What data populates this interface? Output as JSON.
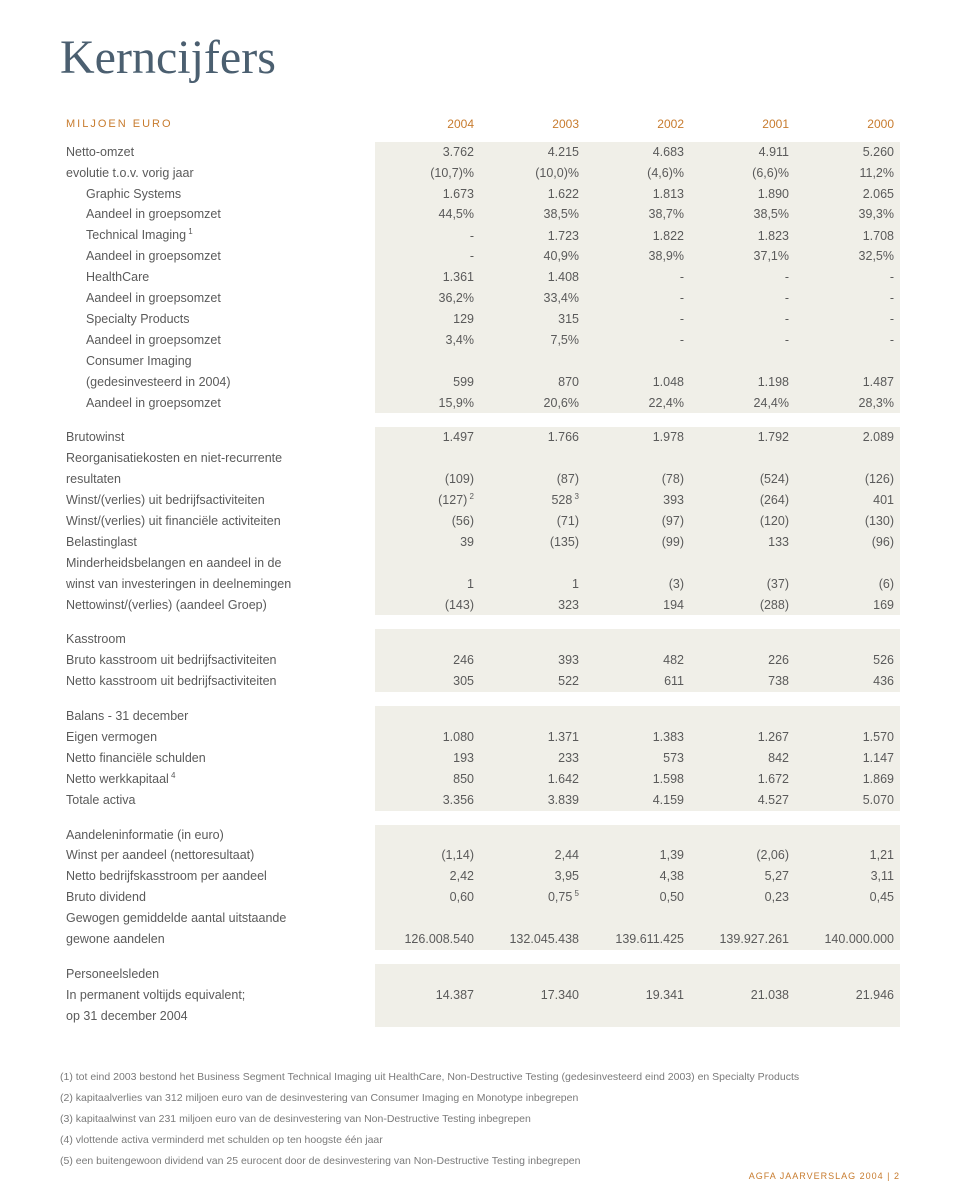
{
  "title": "Kerncijfers",
  "header": {
    "label": "MILJOEN EURO",
    "years": [
      "2004",
      "2003",
      "2002",
      "2001",
      "2000"
    ]
  },
  "colors": {
    "accent": "#c77b2e",
    "cellbg": "#f0efe8",
    "text": "#5a5a5a",
    "title": "#4b5f70"
  },
  "rows": [
    {
      "type": "data",
      "label": "Netto-omzet",
      "v": [
        "3.762",
        "4.215",
        "4.683",
        "4.911",
        "5.260"
      ]
    },
    {
      "type": "data",
      "label": "evolutie t.o.v. vorig jaar",
      "v": [
        "(10,7)%",
        "(10,0)%",
        "(4,6)%",
        "(6,6)%",
        "11,2%"
      ]
    },
    {
      "type": "data",
      "sub": true,
      "label": "Graphic Systems",
      "v": [
        "1.673",
        "1.622",
        "1.813",
        "1.890",
        "2.065"
      ]
    },
    {
      "type": "data",
      "sub": true,
      "label": "Aandeel in groepsomzet",
      "v": [
        "44,5%",
        "38,5%",
        "38,7%",
        "38,5%",
        "39,3%"
      ]
    },
    {
      "type": "data",
      "sub": true,
      "label": "Technical Imaging",
      "sup": "1",
      "v": [
        "-",
        "1.723",
        "1.822",
        "1.823",
        "1.708"
      ]
    },
    {
      "type": "data",
      "sub": true,
      "label": "Aandeel in groepsomzet",
      "v": [
        "-",
        "40,9%",
        "38,9%",
        "37,1%",
        "32,5%"
      ]
    },
    {
      "type": "data",
      "sub": true,
      "label": "HealthCare",
      "v": [
        "1.361",
        "1.408",
        "-",
        "-",
        "-"
      ]
    },
    {
      "type": "data",
      "sub": true,
      "label": "Aandeel in groepsomzet",
      "v": [
        "36,2%",
        "33,4%",
        "-",
        "-",
        "-"
      ]
    },
    {
      "type": "data",
      "sub": true,
      "label": "Specialty Products",
      "v": [
        "129",
        "315",
        "-",
        "-",
        "-"
      ]
    },
    {
      "type": "data",
      "sub": true,
      "label": "Aandeel in groepsomzet",
      "v": [
        "3,4%",
        "7,5%",
        "-",
        "-",
        "-"
      ]
    },
    {
      "type": "data",
      "sub": true,
      "label": "Consumer Imaging",
      "v": [
        "",
        "",
        "",
        "",
        ""
      ]
    },
    {
      "type": "data",
      "sub": true,
      "label": "(gedesinvesteerd in 2004)",
      "v": [
        "599",
        "870",
        "1.048",
        "1.198",
        "1.487"
      ]
    },
    {
      "type": "data",
      "sub": true,
      "label": "Aandeel in groepsomzet",
      "v": [
        "15,9%",
        "20,6%",
        "22,4%",
        "24,4%",
        "28,3%"
      ]
    },
    {
      "type": "blank"
    },
    {
      "type": "data",
      "label": "Brutowinst",
      "v": [
        "1.497",
        "1.766",
        "1.978",
        "1.792",
        "2.089"
      ]
    },
    {
      "type": "data",
      "label": "Reorganisatiekosten en niet-recurrente",
      "v": [
        "",
        "",
        "",
        "",
        ""
      ]
    },
    {
      "type": "data",
      "label": "resultaten",
      "v": [
        "(109)",
        "(87)",
        "(78)",
        "(524)",
        "(126)"
      ]
    },
    {
      "type": "data",
      "label": "Winst/(verlies) uit bedrijfsactiviteiten",
      "v": [
        "(127)",
        "528",
        "393",
        "(264)",
        "401"
      ],
      "supv": [
        "2",
        "3",
        "",
        "",
        ""
      ]
    },
    {
      "type": "data",
      "label": "Winst/(verlies) uit financiële activiteiten",
      "v": [
        "(56)",
        "(71)",
        "(97)",
        "(120)",
        "(130)"
      ]
    },
    {
      "type": "data",
      "label": "Belastinglast",
      "v": [
        "39",
        "(135)",
        "(99)",
        "133",
        "(96)"
      ]
    },
    {
      "type": "data",
      "label": "Minderheidsbelangen en aandeel in de",
      "v": [
        "",
        "",
        "",
        "",
        ""
      ]
    },
    {
      "type": "data",
      "label": "winst van investeringen in deelnemingen",
      "v": [
        "1",
        "1",
        "(3)",
        "(37)",
        "(6)"
      ]
    },
    {
      "type": "data",
      "label": "Nettowinst/(verlies) (aandeel Groep)",
      "v": [
        "(143)",
        "323",
        "194",
        "(288)",
        "169"
      ]
    },
    {
      "type": "blank"
    },
    {
      "type": "data",
      "label": "Kasstroom",
      "v": [
        "",
        "",
        "",
        "",
        ""
      ]
    },
    {
      "type": "data",
      "label": "Bruto kasstroom uit bedrijfsactiviteiten",
      "v": [
        "246",
        "393",
        "482",
        "226",
        "526"
      ]
    },
    {
      "type": "data",
      "label": "Netto kasstroom uit bedrijfsactiviteiten",
      "v": [
        "305",
        "522",
        "611",
        "738",
        "436"
      ]
    },
    {
      "type": "blank"
    },
    {
      "type": "data",
      "label": "Balans - 31 december",
      "v": [
        "",
        "",
        "",
        "",
        ""
      ]
    },
    {
      "type": "data",
      "label": "Eigen vermogen",
      "v": [
        "1.080",
        "1.371",
        "1.383",
        "1.267",
        "1.570"
      ]
    },
    {
      "type": "data",
      "label": "Netto financiële schulden",
      "v": [
        "193",
        "233",
        "573",
        "842",
        "1.147"
      ]
    },
    {
      "type": "data",
      "label": "Netto werkkapitaal",
      "sup": "4",
      "v": [
        "850",
        "1.642",
        "1.598",
        "1.672",
        "1.869"
      ]
    },
    {
      "type": "data",
      "label": "Totale activa",
      "v": [
        "3.356",
        "3.839",
        "4.159",
        "4.527",
        "5.070"
      ]
    },
    {
      "type": "blank"
    },
    {
      "type": "data",
      "label": "Aandeleninformatie (in euro)",
      "v": [
        "",
        "",
        "",
        "",
        ""
      ]
    },
    {
      "type": "data",
      "label": "Winst per aandeel (nettoresultaat)",
      "v": [
        "(1,14)",
        "2,44",
        "1,39",
        "(2,06)",
        "1,21"
      ]
    },
    {
      "type": "data",
      "label": "Netto bedrijfskasstroom per aandeel",
      "v": [
        "2,42",
        "3,95",
        "4,38",
        "5,27",
        "3,11"
      ]
    },
    {
      "type": "data",
      "label": "Bruto dividend",
      "v": [
        "0,60",
        "0,75",
        "0,50",
        "0,23",
        "0,45"
      ],
      "supv": [
        "",
        "5",
        "",
        "",
        ""
      ]
    },
    {
      "type": "data",
      "label": "Gewogen gemiddelde aantal uitstaande",
      "v": [
        "",
        "",
        "",
        "",
        ""
      ]
    },
    {
      "type": "data",
      "label": "gewone aandelen",
      "v": [
        "126.008.540",
        "132.045.438",
        "139.611.425",
        "139.927.261",
        "140.000.000"
      ]
    },
    {
      "type": "blank"
    },
    {
      "type": "data",
      "label": "Personeelsleden",
      "v": [
        "",
        "",
        "",
        "",
        ""
      ]
    },
    {
      "type": "data",
      "label": "In permanent voltijds equivalent;",
      "v": [
        "14.387",
        "17.340",
        "19.341",
        "21.038",
        "21.946"
      ]
    },
    {
      "type": "data",
      "label": "op 31 december 2004",
      "v": [
        "",
        "",
        "",
        "",
        ""
      ]
    }
  ],
  "footnotes": [
    "(1)  tot eind 2003 bestond het Business Segment Technical Imaging uit HealthCare, Non-Destructive Testing (gedesinvesteerd eind 2003) en Specialty Products",
    "(2)  kapitaalverlies van 312 miljoen euro van de desinvestering van Consumer Imaging en Monotype inbegrepen",
    "(3)  kapitaalwinst van 231 miljoen euro van de desinvestering van Non-Destructive Testing inbegrepen",
    "(4)  vlottende activa verminderd met schulden op ten hoogste één jaar",
    "(5)  een buitengewoon dividend van 25 eurocent door de desinvestering van Non-Destructive Testing inbegrepen"
  ],
  "footer": "AGFA JAARVERSLAG 2004  |  2"
}
